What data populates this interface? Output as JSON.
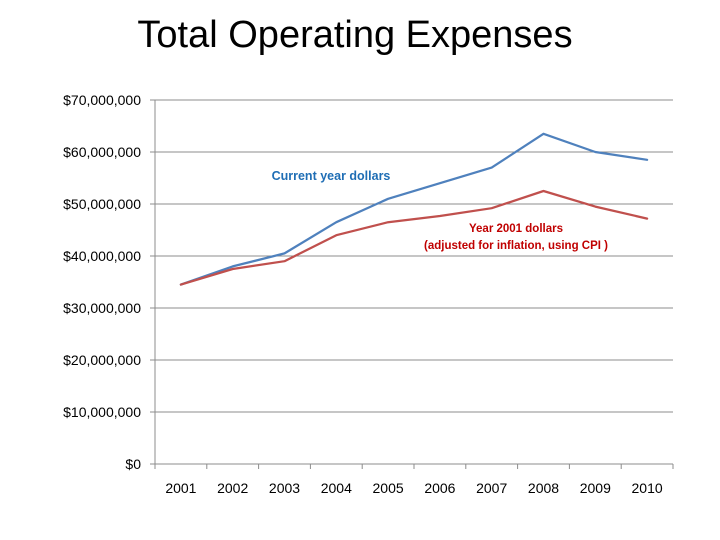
{
  "slide": {
    "title": "Total Operating Expenses"
  },
  "chart_data": {
    "type": "line",
    "title": "Total Operating Expenses",
    "x": [
      "2001",
      "2002",
      "2003",
      "2004",
      "2005",
      "2006",
      "2007",
      "2008",
      "2009",
      "2010"
    ],
    "ylim": [
      0,
      70000000
    ],
    "yticks": [
      0,
      10000000,
      20000000,
      30000000,
      40000000,
      50000000,
      60000000,
      70000000
    ],
    "ytick_labels": [
      "$0",
      "$10,000,000",
      "$20,000,000",
      "$30,000,000",
      "$40,000,000",
      "$50,000,000",
      "$60,000,000",
      "$70,000,000"
    ],
    "grid": true,
    "series": [
      {
        "name": "Current year dollars",
        "color": "#4F81BD",
        "values": [
          34500000,
          38000000,
          40500000,
          46500000,
          51000000,
          54000000,
          57000000,
          63500000,
          60000000,
          58500000
        ]
      },
      {
        "name": "Year 2001 dollars (adjusted for inflation, using CPI )",
        "color": "#C0504D",
        "values": [
          34500000,
          37500000,
          39000000,
          44000000,
          46500000,
          47700000,
          49200000,
          52500000,
          49500000,
          47200000
        ]
      }
    ],
    "annotations": [
      {
        "text": "Current year dollars",
        "color": "#1F6EB5"
      },
      {
        "text": "Year 2001 dollars",
        "color": "#C00000"
      },
      {
        "text": "(adjusted for inflation, using CPI )",
        "color": "#C00000"
      }
    ]
  }
}
